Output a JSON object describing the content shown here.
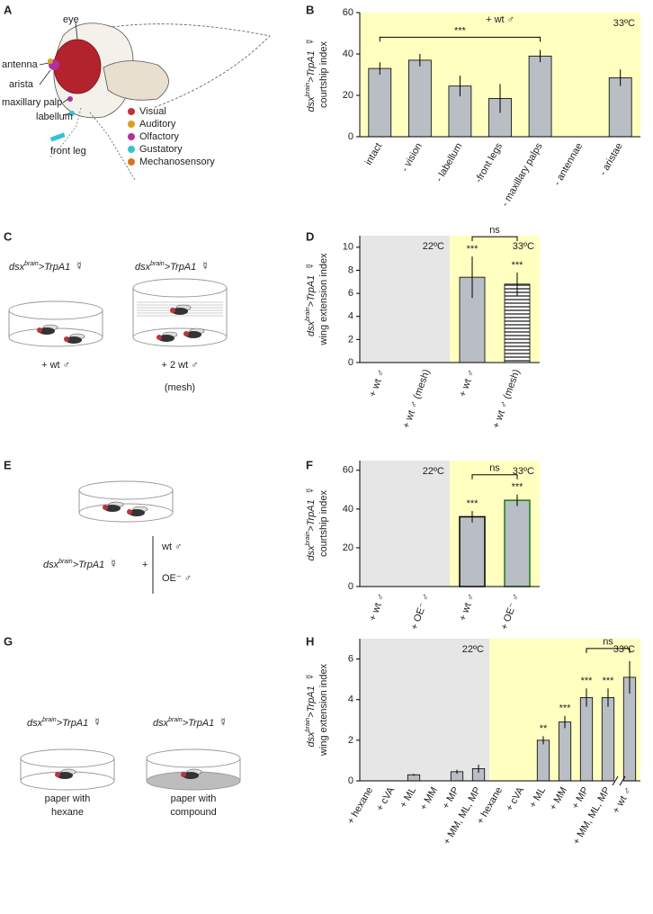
{
  "panels": [
    "A",
    "B",
    "C",
    "D",
    "E",
    "F",
    "G",
    "H"
  ],
  "genotype": {
    "name": "dsx",
    "sup": "brain",
    "rest": ">TrpA1",
    "sex": "☿"
  },
  "panel_a": {
    "labels": [
      "eye",
      "antenna",
      "arista",
      "maxillary palp",
      "labellum",
      "front leg"
    ],
    "legend": [
      {
        "name": "Visual",
        "color": "#c0323c"
      },
      {
        "name": "Auditory",
        "color": "#d8a21e"
      },
      {
        "name": "Olfactory",
        "color": "#b1309e"
      },
      {
        "name": "Gustatory",
        "color": "#33c2d6"
      },
      {
        "name": "Mechanosensory",
        "color": "#e07020"
      }
    ]
  },
  "panel_c": {
    "left": "+ wt ♂",
    "right": "+ 2 wt ♂",
    "right_note": "(mesh)"
  },
  "panel_e": {
    "plus": "+",
    "males": [
      {
        "text": "wt ♂",
        "color": "#222222"
      },
      {
        "text": "OE⁻ ♂",
        "color": "#1a7a1a"
      }
    ]
  },
  "panel_g": {
    "left": [
      "paper with",
      "hexane"
    ],
    "right": [
      "paper with",
      "compound"
    ]
  },
  "chart_data": [
    {
      "type": "bar",
      "ylabel": "courtship index",
      "bar_color": "#b9bdc4",
      "categories": [
        "intact",
        "- vision",
        "- labellum",
        "-front legs",
        "- maxillary palps",
        "- antennae",
        "- aristae"
      ],
      "values": [
        33,
        37,
        24.5,
        18.5,
        39,
        0,
        28.5
      ],
      "errors": [
        3,
        3,
        5,
        7,
        3,
        null,
        4
      ],
      "ylim": [
        0,
        60
      ],
      "yticks": [
        0,
        20,
        40,
        60
      ],
      "regions": [
        {
          "label": "33ºC",
          "span": 7,
          "color": "#ffffc0"
        }
      ],
      "note": "+ wt ♂",
      "brackets": [
        {
          "text": "***",
          "from": 0,
          "to": 4
        }
      ]
    },
    {
      "type": "bar",
      "ylabel": "wing extension index",
      "bar_color": "#b9bdc4",
      "categories": [
        "+ wt ♂",
        "+ wt ♂ (mesh)",
        "+ wt ♂",
        "+ wt ♂ (mesh)"
      ],
      "values": [
        0,
        0,
        7.4,
        6.8
      ],
      "errors": [
        null,
        null,
        1.8,
        1
      ],
      "ylim": [
        0,
        11
      ],
      "yticks": [
        0,
        2,
        4,
        6,
        8,
        10
      ],
      "regions": [
        {
          "label": "22ºC",
          "span": 2,
          "color": "#e6e6e6"
        },
        {
          "label": "33ºC",
          "span": 2,
          "color": "#ffffc0"
        }
      ],
      "bar_styles": [
        "plain",
        "plain",
        "plain",
        "hatched"
      ],
      "stars": [
        {
          "text": "***",
          "at": 2
        },
        {
          "text": "***",
          "at": 3
        }
      ],
      "brackets": [
        {
          "text": "ns",
          "from": 2,
          "to": 3
        }
      ]
    },
    {
      "type": "bar",
      "ylabel": "courtship index",
      "bar_color": "#b9bdc4",
      "categories": [
        "+ wt ♂",
        "+ OE⁻ ♂",
        "+ wt ♂",
        "+ OE⁻ ♂"
      ],
      "values": [
        0,
        0,
        36,
        44.5
      ],
      "errors": [
        null,
        null,
        3,
        3
      ],
      "ylim": [
        0,
        65
      ],
      "yticks": [
        0,
        20,
        40,
        60
      ],
      "regions": [
        {
          "label": "22ºC",
          "span": 2,
          "color": "#e6e6e6"
        },
        {
          "label": "33ºC",
          "span": 2,
          "color": "#ffffc0"
        }
      ],
      "edge_colors": [
        "#000000",
        "#000000",
        "#000000",
        "#1a7a1a"
      ],
      "stars": [
        {
          "text": "***",
          "at": 2
        },
        {
          "text": "***",
          "at": 3
        }
      ],
      "brackets": [
        {
          "text": "ns",
          "from": 2,
          "to": 3
        }
      ]
    },
    {
      "type": "bar",
      "ylabel": "wing extension index",
      "bar_color": "#b9bdc4",
      "categories": [
        "+ hexane",
        "+ cVA",
        "+ ML",
        "+ MM",
        "+ MP",
        "+ MM, ML, MP",
        "+ hexane",
        "+ cVA",
        "+ ML",
        "+ MM",
        "+ MP",
        "+ MM, ML, MP",
        "+ wt ♂"
      ],
      "values": [
        0,
        0,
        0.3,
        0,
        0.45,
        0.6,
        0,
        0,
        2.0,
        2.9,
        4.1,
        4.1,
        5.1
      ],
      "errors": [
        null,
        null,
        0.05,
        null,
        0.1,
        0.2,
        null,
        null,
        0.2,
        0.3,
        0.45,
        0.45,
        0.8
      ],
      "ylim": [
        0,
        7
      ],
      "yticks": [
        0,
        2,
        4,
        6
      ],
      "regions": [
        {
          "label": "22ºC",
          "span": 6,
          "color": "#e6e6e6"
        },
        {
          "label": "33ºC",
          "span": 7,
          "color": "#ffffc0"
        }
      ],
      "axis_break_after": 11,
      "stars": [
        {
          "text": "**",
          "at": 8
        },
        {
          "text": "***",
          "at": 9
        },
        {
          "text": "***",
          "at": 10
        },
        {
          "text": "***",
          "at": 11
        }
      ],
      "brackets": [
        {
          "text": "ns",
          "from": 10,
          "to": 12
        }
      ]
    }
  ]
}
